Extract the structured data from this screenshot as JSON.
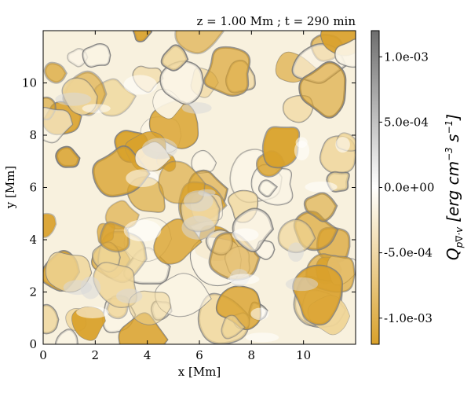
{
  "chart_data": {
    "type": "heatmap",
    "title": "z = 1.00 Mm ; t = 290 min",
    "xlabel": "x [Mm]",
    "ylabel": "y [Mm]",
    "xlim": [
      0,
      12
    ],
    "ylim": [
      0,
      12
    ],
    "xticks": [
      0,
      2,
      4,
      6,
      8,
      10
    ],
    "yticks": [
      0,
      2,
      4,
      6,
      8,
      10
    ],
    "xtick_labels": [
      "0",
      "2",
      "4",
      "6",
      "8",
      "10"
    ],
    "ytick_labels": [
      "0",
      "2",
      "4",
      "6",
      "8",
      "10"
    ],
    "colorbar": {
      "label_main": "Q",
      "label_sub": "p∇·v",
      "label_units": "[erg cm",
      "label_units_exp1": "−3",
      "label_units_mid": " s",
      "label_units_exp2": "−1",
      "label_units_end": "]",
      "range": [
        -0.0012,
        0.0012
      ],
      "ticks": [
        0.001,
        0.0005,
        0.0,
        -0.0005,
        -0.001
      ],
      "tick_labels": [
        "1.0e-03",
        "5.0e-04",
        "0.0e+00",
        "-5.0e-04",
        "-1.0e-03"
      ],
      "colors": {
        "negative": "#d9a12b",
        "zero": "#ffffff",
        "positive": "#6e6e6e"
      }
    },
    "grid": false,
    "field_description_colors": {
      "lane": "#7a7a7a",
      "granule": "#d9a12b",
      "background": "#f7f0dc"
    }
  }
}
